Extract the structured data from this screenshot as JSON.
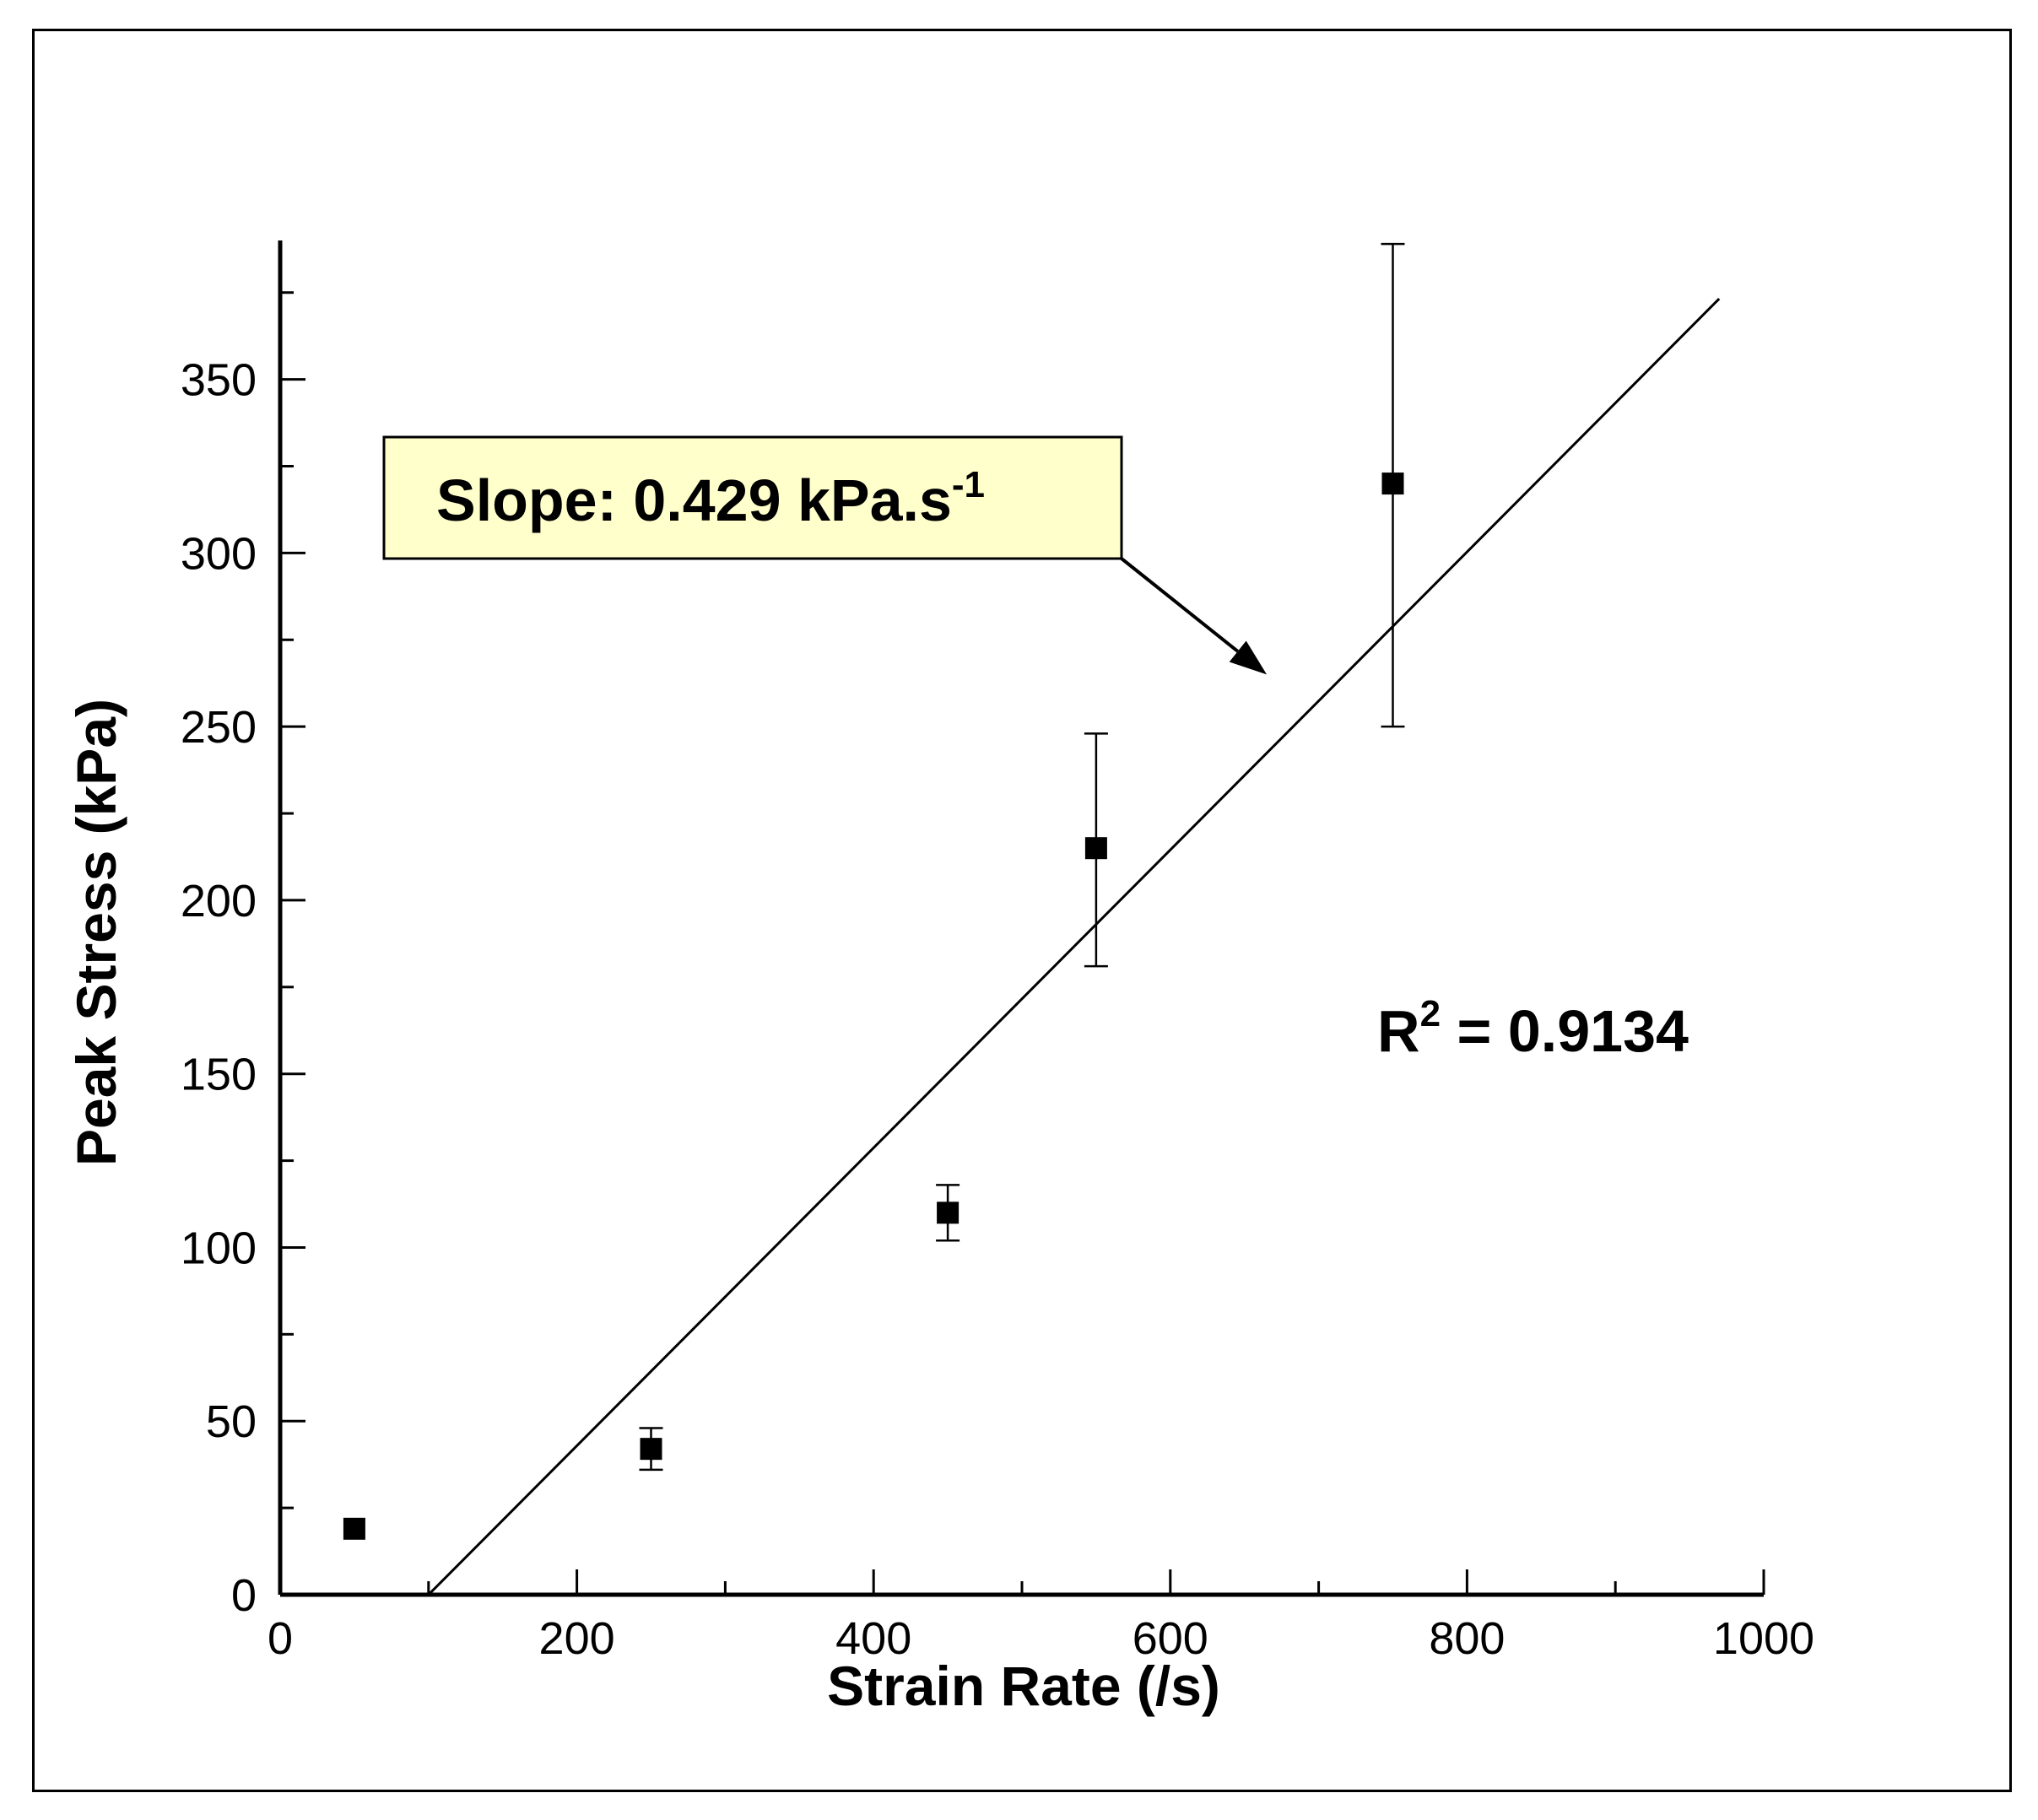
{
  "chart_data": {
    "type": "scatter",
    "xlabel": "Strain Rate (/s)",
    "ylabel": "Peak Stress (kPa)",
    "xlim": [
      0,
      1000
    ],
    "ylim": [
      0,
      390
    ],
    "x_ticks": [
      0,
      200,
      400,
      600,
      800,
      1000
    ],
    "y_ticks": [
      0,
      50,
      100,
      150,
      200,
      250,
      300,
      350
    ],
    "x_minor_step": 100,
    "y_minor_step": 25,
    "grid": false,
    "series": [
      {
        "points": [
          {
            "x": 50,
            "y": 19,
            "err_low": 0,
            "err_high": 0
          },
          {
            "x": 250,
            "y": 42,
            "err_low": 6,
            "err_high": 6
          },
          {
            "x": 450,
            "y": 110,
            "err_low": 8,
            "err_high": 8
          },
          {
            "x": 550,
            "y": 215,
            "err_low": 34,
            "err_high": 33
          },
          {
            "x": 750,
            "y": 320,
            "err_low": 70,
            "err_high": 69
          }
        ]
      }
    ],
    "fit_line": {
      "type": "linear",
      "slope": 0.429,
      "x_start": 100,
      "x_end": 970
    },
    "annotations": {
      "slope_box": {
        "text_main": "Slope: 0.429 kPa.s",
        "text_sup": "-1",
        "background": "#ffffcc",
        "arrow_target": {
          "x": 665,
          "y": 265
        }
      },
      "r_squared": {
        "text_main": "R",
        "text_sup": "2",
        "text_value": " =  0.9134"
      }
    }
  }
}
